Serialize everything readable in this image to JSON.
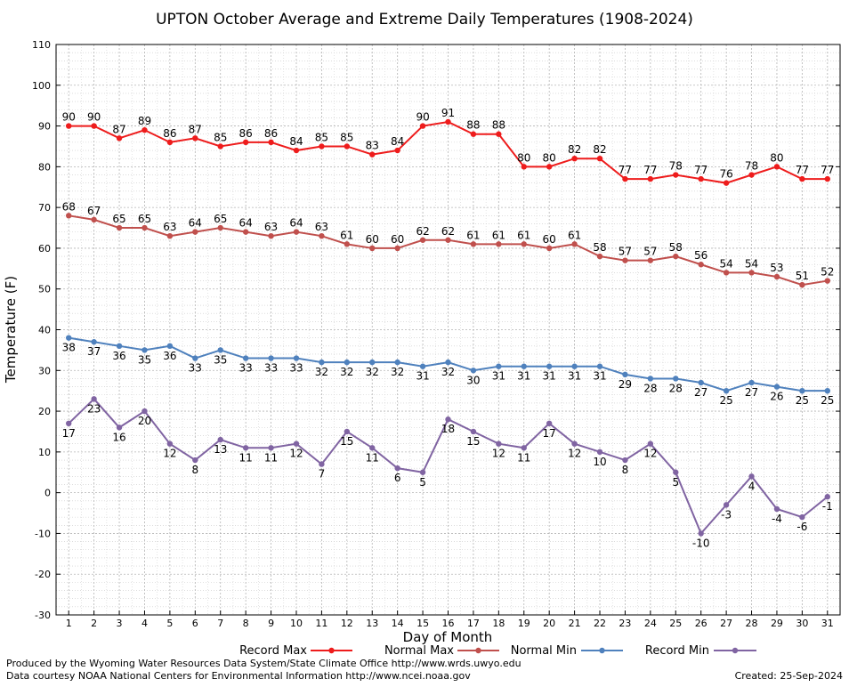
{
  "chart_data": {
    "type": "line",
    "title": "UPTON October Average and Extreme Daily Temperatures (1908-2024)",
    "xlabel": "Day of Month",
    "ylabel": "Temperature (F)",
    "ylim": [
      -30,
      110
    ],
    "y_ticks": [
      -30,
      -20,
      -10,
      0,
      10,
      20,
      30,
      40,
      50,
      60,
      70,
      80,
      90,
      100,
      110
    ],
    "x": [
      1,
      2,
      3,
      4,
      5,
      6,
      7,
      8,
      9,
      10,
      11,
      12,
      13,
      14,
      15,
      16,
      17,
      18,
      19,
      20,
      21,
      22,
      23,
      24,
      25,
      26,
      27,
      28,
      29,
      30,
      31
    ],
    "grid": true,
    "legend_position": "bottom",
    "series": [
      {
        "name": "Record Max",
        "color": "#ee1c1c",
        "label_pos": "above",
        "values": [
          90,
          90,
          87,
          89,
          86,
          87,
          85,
          86,
          86,
          84,
          85,
          85,
          83,
          84,
          90,
          91,
          88,
          88,
          80,
          80,
          82,
          82,
          77,
          77,
          78,
          77,
          76,
          78,
          80,
          77,
          77
        ]
      },
      {
        "name": "Normal Max",
        "color": "#c0504d",
        "label_pos": "above",
        "values": [
          68,
          67,
          65,
          65,
          63,
          64,
          65,
          64,
          63,
          64,
          63,
          61,
          60,
          60,
          62,
          62,
          61,
          61,
          61,
          60,
          61,
          58,
          57,
          57,
          58,
          56,
          54,
          54,
          53,
          51,
          52
        ]
      },
      {
        "name": "Normal Min",
        "color": "#4f81bd",
        "label_pos": "below",
        "values": [
          38,
          37,
          36,
          35,
          36,
          33,
          35,
          33,
          33,
          33,
          32,
          32,
          32,
          32,
          31,
          32,
          30,
          31,
          31,
          31,
          31,
          31,
          29,
          28,
          28,
          27,
          25,
          27,
          26,
          25,
          25
        ]
      },
      {
        "name": "Record Min",
        "color": "#8064a2",
        "label_pos": "below",
        "values": [
          17,
          23,
          16,
          20,
          12,
          8,
          13,
          11,
          11,
          12,
          7,
          15,
          11,
          6,
          5,
          18,
          15,
          12,
          11,
          17,
          12,
          10,
          8,
          12,
          5,
          -10,
          -3,
          4,
          -4,
          -6,
          -1
        ]
      }
    ]
  },
  "footer": {
    "credit_line1": "Produced by the Wyoming Water Resources Data System/State Climate Office http://www.wrds.uwyo.edu",
    "credit_line2": "Data courtesy NOAA National Centers for Environmental Information http://www.ncei.noaa.gov",
    "created": "Created:  25-Sep-2024"
  }
}
